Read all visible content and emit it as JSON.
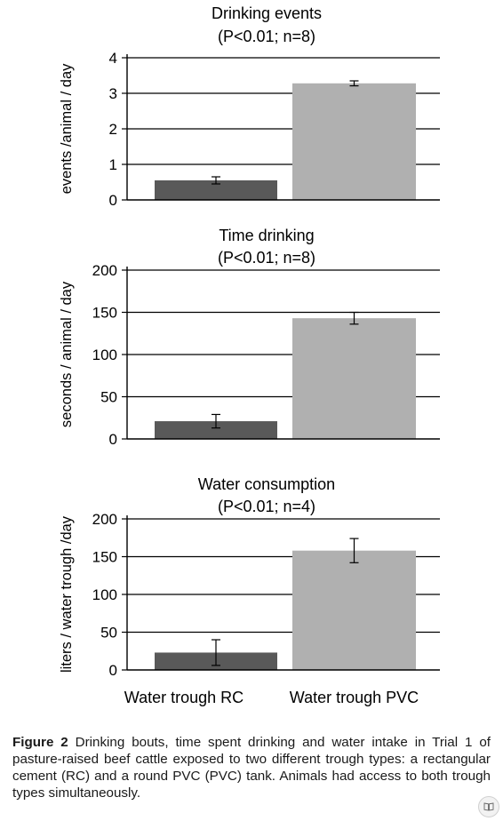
{
  "chart_data": [
    {
      "type": "bar",
      "title": "Drinking events",
      "subtitle": "(P<0.01; n=8)",
      "ylabel": "events /animal / day",
      "xlabel": "",
      "categories": [
        "Water trough RC",
        "Water trough PVC"
      ],
      "values": [
        0.55,
        3.28
      ],
      "errors": [
        0.1,
        0.07
      ],
      "ylim": [
        0,
        4
      ],
      "yticks": [
        0,
        1,
        2,
        3,
        4
      ],
      "grid": true,
      "show_category_labels": false
    },
    {
      "type": "bar",
      "title": "Time drinking",
      "subtitle": "(P<0.01; n=8)",
      "ylabel": "seconds / animal / day",
      "xlabel": "",
      "categories": [
        "Water trough RC",
        "Water trough PVC"
      ],
      "values": [
        21,
        143
      ],
      "errors": [
        8,
        7
      ],
      "ylim": [
        0,
        200
      ],
      "yticks": [
        0,
        50,
        100,
        150,
        200
      ],
      "grid": true,
      "show_category_labels": false
    },
    {
      "type": "bar",
      "title": "Water consumption",
      "subtitle": "(P<0.01; n=4)",
      "ylabel": "liters / water trough /day",
      "xlabel": "",
      "categories": [
        "Water trough RC",
        "Water trough PVC"
      ],
      "values": [
        23,
        158
      ],
      "errors": [
        17,
        16
      ],
      "ylim": [
        0,
        200
      ],
      "yticks": [
        0,
        50,
        100,
        150,
        200
      ],
      "grid": true,
      "show_category_labels": true
    }
  ],
  "colors": {
    "rc_bar": "#595959",
    "pvc_bar": "#b0b0b0",
    "axis": "#000000"
  },
  "caption": {
    "label": "Figure 2",
    "text": " Drinking bouts, time spent drinking and water intake in Trial 1 of pasture-raised beef cattle exposed to two different trough types: a rectangular cement (RC) and a round PVC (PVC) tank. Animals had access to both trough types simultaneously."
  },
  "corner_icon": "book-icon"
}
